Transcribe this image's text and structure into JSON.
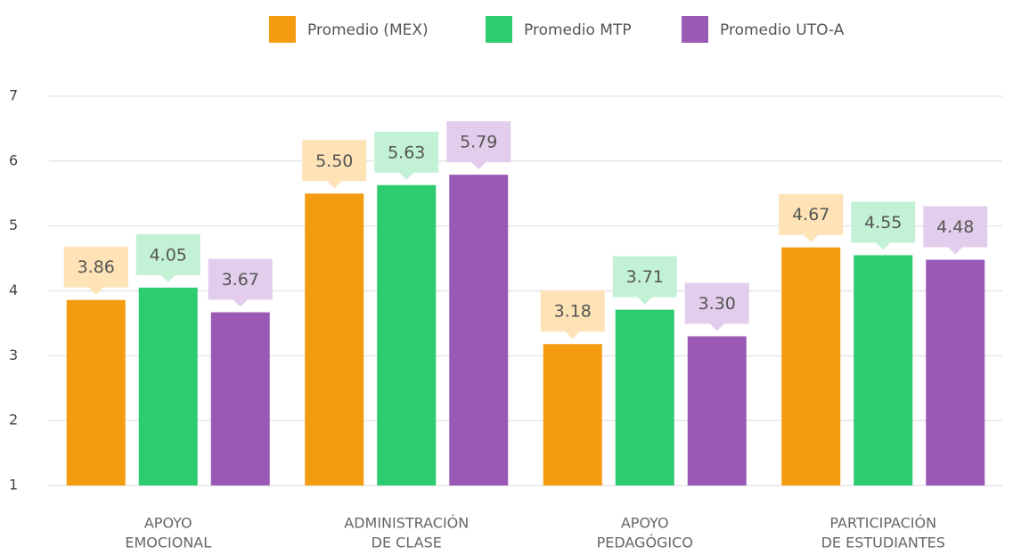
{
  "chart_data": {
    "type": "bar",
    "categories": [
      [
        "APOYO",
        "EMOCIONAL"
      ],
      [
        "ADMINISTRACIÓN",
        "DE CLASE"
      ],
      [
        "APOYO",
        "PEDAGÓGICO"
      ],
      [
        "PARTICIPACIÓN",
        "DE ESTUDIANTES"
      ]
    ],
    "series": [
      {
        "name": "Promedio (MEX)",
        "color": "#f39c12",
        "label_bg": "#fde3b6",
        "values": [
          3.86,
          5.5,
          3.18,
          4.67
        ],
        "value_labels": [
          "3.86",
          "5.50",
          "3.18",
          "4.67"
        ]
      },
      {
        "name": "Promedio MTP",
        "color": "#2ecc71",
        "label_bg": "#c3f1d5",
        "values": [
          4.05,
          5.63,
          3.71,
          4.55
        ],
        "value_labels": [
          "4.05",
          "5.63",
          "3.71",
          "4.55"
        ]
      },
      {
        "name": "Promedio UTO-A",
        "color": "#9b59b6",
        "label_bg": "#e3cdec",
        "values": [
          3.67,
          5.79,
          3.3,
          4.48
        ],
        "value_labels": [
          "3.67",
          "5.79",
          "3.30",
          "4.48"
        ]
      }
    ],
    "ylim": [
      1,
      7
    ],
    "yticks": [
      1,
      2,
      3,
      4,
      5,
      6,
      7
    ],
    "grid": true,
    "legend": "top"
  }
}
